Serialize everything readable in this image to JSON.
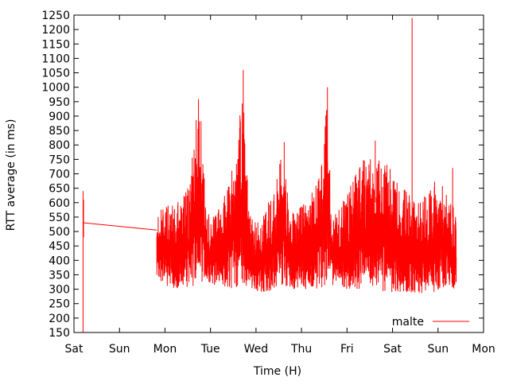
{
  "chart_data": {
    "type": "line",
    "title": "",
    "xlabel": "Time (H)",
    "ylabel": "RTT average (in ms)",
    "x_ticks": [
      "Sat",
      "Sun",
      "Mon",
      "Tue",
      "Wed",
      "Thu",
      "Fri",
      "Sat",
      "Sun",
      "Mon"
    ],
    "xlim": [
      0,
      9
    ],
    "ylim": [
      150,
      1250
    ],
    "y_ticks": [
      150,
      200,
      250,
      300,
      350,
      400,
      450,
      500,
      550,
      600,
      650,
      700,
      750,
      800,
      850,
      900,
      950,
      1000,
      1050,
      1100,
      1150,
      1200,
      1250
    ],
    "grid": false,
    "legend_position": "bottom-right",
    "series": [
      {
        "name": "malte",
        "color": "#ff0000",
        "x_unit": "days since first Sat tick",
        "band": [
          {
            "x": 1.82,
            "low": 340,
            "high": 560
          },
          {
            "x": 2.0,
            "low": 310,
            "high": 590
          },
          {
            "x": 2.3,
            "low": 300,
            "high": 620
          },
          {
            "x": 2.5,
            "low": 300,
            "high": 650
          },
          {
            "x": 2.62,
            "low": 310,
            "high": 780
          },
          {
            "x": 2.75,
            "low": 320,
            "high": 1000
          },
          {
            "x": 2.9,
            "low": 330,
            "high": 580
          },
          {
            "x": 3.1,
            "low": 310,
            "high": 560
          },
          {
            "x": 3.3,
            "low": 300,
            "high": 620
          },
          {
            "x": 3.55,
            "low": 300,
            "high": 760
          },
          {
            "x": 3.7,
            "low": 310,
            "high": 1020
          },
          {
            "x": 3.85,
            "low": 300,
            "high": 560
          },
          {
            "x": 4.0,
            "low": 290,
            "high": 530
          },
          {
            "x": 4.2,
            "low": 290,
            "high": 560
          },
          {
            "x": 4.45,
            "low": 300,
            "high": 700
          },
          {
            "x": 4.6,
            "low": 310,
            "high": 800
          },
          {
            "x": 4.75,
            "low": 300,
            "high": 560
          },
          {
            "x": 4.95,
            "low": 300,
            "high": 580
          },
          {
            "x": 5.15,
            "low": 300,
            "high": 620
          },
          {
            "x": 5.4,
            "low": 300,
            "high": 700
          },
          {
            "x": 5.55,
            "low": 310,
            "high": 960
          },
          {
            "x": 5.7,
            "low": 300,
            "high": 560
          },
          {
            "x": 5.95,
            "low": 300,
            "high": 620
          },
          {
            "x": 6.2,
            "low": 300,
            "high": 700
          },
          {
            "x": 6.4,
            "low": 300,
            "high": 760
          },
          {
            "x": 6.65,
            "low": 290,
            "high": 740
          },
          {
            "x": 6.85,
            "low": 290,
            "high": 780
          },
          {
            "x": 7.05,
            "low": 290,
            "high": 680
          },
          {
            "x": 7.3,
            "low": 280,
            "high": 640
          },
          {
            "x": 7.55,
            "low": 280,
            "high": 600
          },
          {
            "x": 7.8,
            "low": 290,
            "high": 650
          },
          {
            "x": 8.0,
            "low": 290,
            "high": 720
          },
          {
            "x": 8.2,
            "low": 300,
            "high": 660
          },
          {
            "x": 8.4,
            "low": 300,
            "high": 560
          }
        ],
        "line": [
          {
            "x": 0.22,
            "y": 530
          },
          {
            "x": 1.82,
            "y": 505
          }
        ],
        "spikes": [
          {
            "x": 0.2,
            "low": 150,
            "high": 640
          },
          {
            "x": 0.21,
            "low": 480,
            "high": 610
          },
          {
            "x": 3.72,
            "low": 600,
            "high": 1060
          },
          {
            "x": 4.62,
            "low": 600,
            "high": 810
          },
          {
            "x": 5.57,
            "low": 650,
            "high": 1000
          },
          {
            "x": 6.62,
            "low": 600,
            "high": 815
          },
          {
            "x": 7.43,
            "low": 450,
            "high": 1240
          },
          {
            "x": 8.32,
            "low": 550,
            "high": 720
          }
        ]
      }
    ]
  }
}
